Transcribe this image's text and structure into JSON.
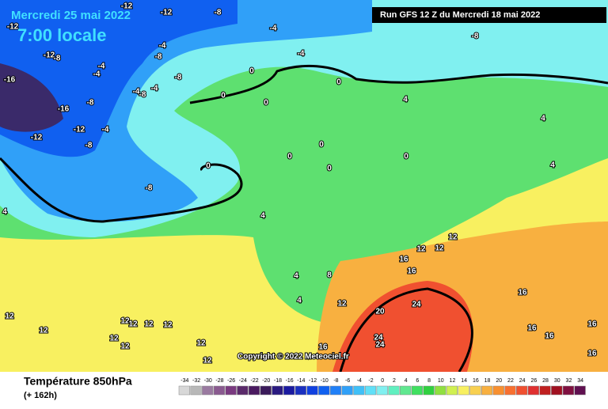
{
  "header": {
    "date": "Mercredi 25 mai 2022",
    "time": "7:00 locale",
    "run": "Run GFS 12 Z du Mercredi 18 mai 2022"
  },
  "map": {
    "copyright": "Copyright © 2022 Meteociel.fr",
    "labels": [
      -12,
      -12,
      -8,
      -4,
      -12,
      -8,
      -12,
      -8,
      -4,
      -4,
      -8,
      -4,
      -8,
      -4,
      -4,
      -16,
      -16,
      -8,
      -12,
      -4,
      -12,
      -8,
      -8,
      -4,
      0,
      0,
      0,
      0,
      4,
      4,
      0,
      0,
      0,
      0,
      0,
      4,
      -8,
      4,
      4,
      12,
      12,
      12,
      16,
      16,
      4,
      8,
      4,
      12,
      24,
      20,
      12,
      12,
      12,
      12,
      12,
      12,
      24,
      24,
      12,
      12,
      12,
      16,
      16,
      16,
      16,
      16,
      12,
      16
    ]
  },
  "footer": {
    "title": "Température 850hPa",
    "lead": "(+ 162h)"
  },
  "legend": {
    "values": [
      -34,
      -32,
      -30,
      -28,
      -26,
      -24,
      -22,
      -20,
      -18,
      -16,
      -14,
      -12,
      -10,
      -8,
      -6,
      -4,
      -2,
      0,
      2,
      4,
      6,
      8,
      10,
      12,
      14,
      16,
      18,
      20,
      22,
      24,
      26,
      28,
      30,
      32,
      34
    ],
    "colors": [
      "#d8d8d8",
      "#b8b8b8",
      "#9a7aa0",
      "#8a5a90",
      "#7a3a80",
      "#5a2a6a",
      "#4a1a60",
      "#3a1a5a",
      "#2a1a80",
      "#1a1aa0",
      "#1a30c0",
      "#1040e0",
      "#1060f0",
      "#2080f8",
      "#30a0f8",
      "#40c0f8",
      "#60e0f8",
      "#80f0f0",
      "#60f0c0",
      "#60e890",
      "#40e060",
      "#30d040",
      "#90e040",
      "#d0f050",
      "#f8f060",
      "#f8d050",
      "#f8b040",
      "#f89030",
      "#f87030",
      "#f05030",
      "#e03030",
      "#c02020",
      "#a01020",
      "#801040",
      "#601050"
    ]
  }
}
